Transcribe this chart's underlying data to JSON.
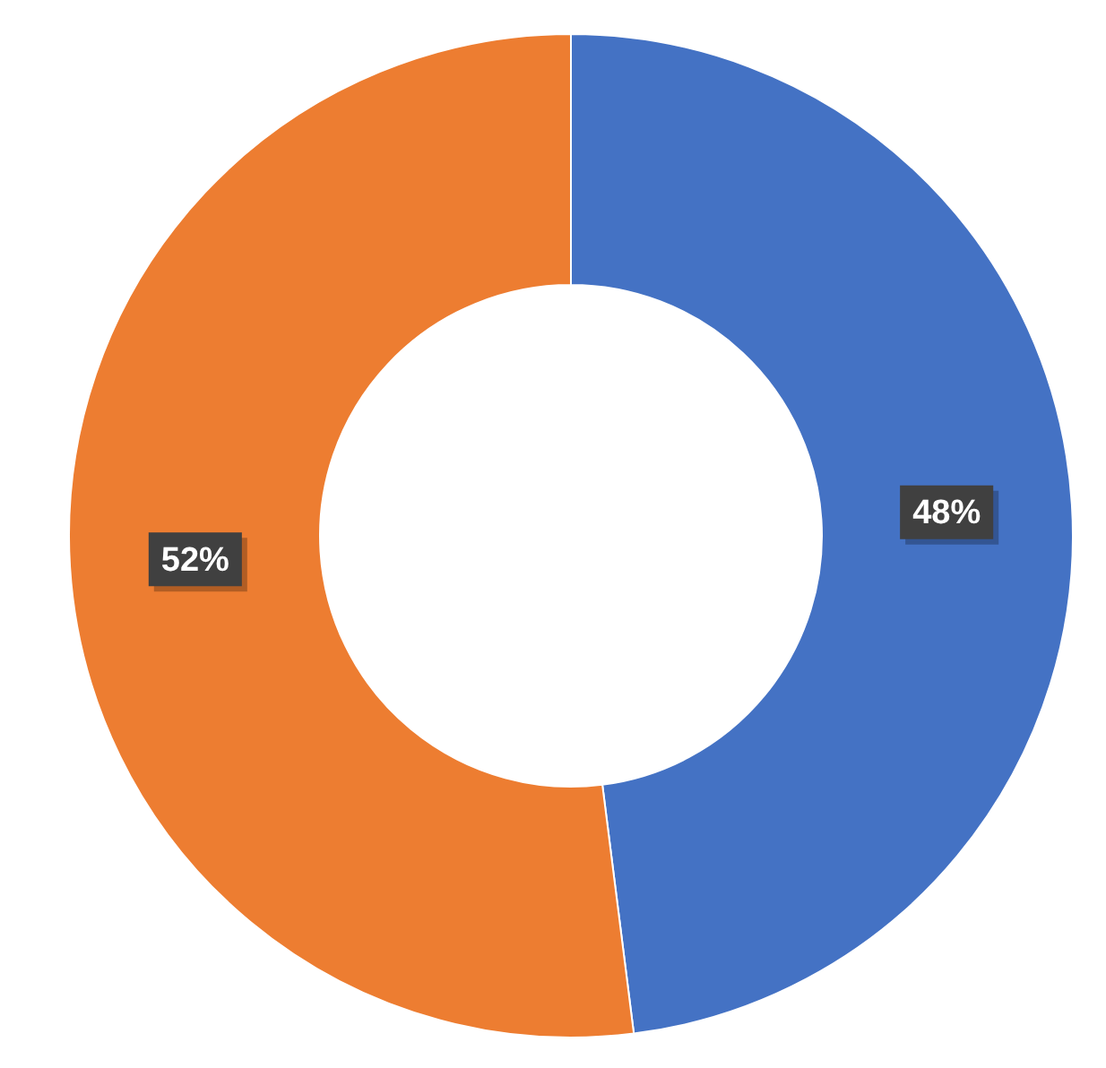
{
  "chart_data": {
    "type": "donut",
    "categories": [
      null,
      null
    ],
    "values": [
      48,
      52
    ],
    "colors": [
      "#4472c4",
      "#ed7d31"
    ],
    "value_labels": [
      "48%",
      "52%"
    ],
    "legend": false
  }
}
